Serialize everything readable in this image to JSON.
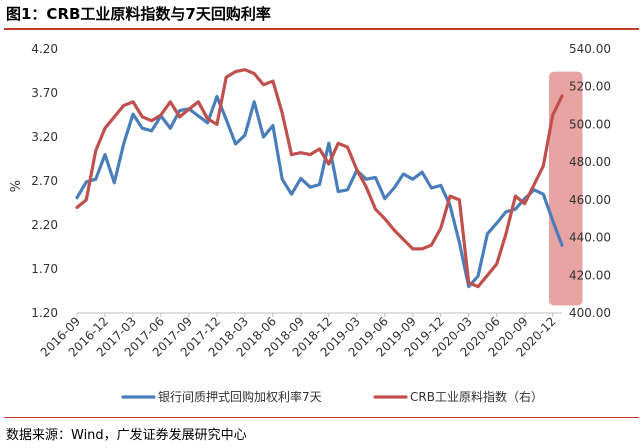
{
  "figure": {
    "title": "图1：CRB工业原料指数与7天回购利率",
    "source": "数据来源：Wind，广发证券发展研究中心"
  },
  "chart_data": {
    "type": "line",
    "title": "图1：CRB工业原料指数与7天回购利率",
    "ylabel": "%",
    "y_unit_label": "%",
    "ylim": [
      1.2,
      4.2
    ],
    "yticks": [
      "4.20",
      "3.70",
      "3.20",
      "2.70",
      "2.20",
      "1.70",
      "1.20"
    ],
    "y2lim": [
      400,
      540
    ],
    "y2ticks": [
      "540.00",
      "520.00",
      "500.00",
      "480.00",
      "460.00",
      "440.00",
      "420.00",
      "400.00"
    ],
    "xlim": [
      0,
      52
    ],
    "x_tick_labels": [
      "2016-09",
      "2016-12",
      "2017-03",
      "2017-06",
      "2017-09",
      "2017-12",
      "2018-03",
      "2018-06",
      "2018-09",
      "2018-12",
      "2019-03",
      "2019-06",
      "2019-09",
      "2019-12",
      "2020-03",
      "2020-06",
      "2020-09",
      "2020-12"
    ],
    "x_tick_positions": [
      0,
      3,
      6,
      9,
      12,
      15,
      18,
      21,
      24,
      27,
      30,
      33,
      36,
      39,
      42,
      45,
      48,
      51
    ],
    "series": [
      {
        "name": "银行间质押式回购加权利率7天",
        "axis": "left",
        "color": "#4a7ebb",
        "x": [
          0,
          1,
          2,
          3,
          4,
          5,
          6,
          7,
          8,
          9,
          10,
          11,
          12,
          13,
          14,
          15,
          16,
          17,
          18,
          19,
          20,
          21,
          22,
          23,
          24,
          25,
          26,
          27,
          28,
          29,
          30,
          31,
          32,
          33,
          34,
          35,
          36,
          37,
          38,
          39,
          40,
          41,
          42,
          43,
          44,
          45,
          46,
          47,
          48,
          49,
          50,
          51,
          52
        ],
        "values": [
          2.51,
          2.69,
          2.72,
          3.0,
          2.68,
          3.12,
          3.46,
          3.3,
          3.27,
          3.44,
          3.3,
          3.5,
          3.52,
          3.44,
          3.36,
          3.66,
          3.4,
          3.12,
          3.22,
          3.6,
          3.2,
          3.33,
          2.72,
          2.55,
          2.73,
          2.63,
          2.66,
          3.13,
          2.58,
          2.6,
          2.82,
          2.72,
          2.74,
          2.5,
          2.62,
          2.78,
          2.72,
          2.8,
          2.62,
          2.65,
          2.42,
          2.0,
          1.5,
          1.62,
          2.1,
          2.22,
          2.35,
          2.38,
          2.5,
          2.6,
          2.55,
          2.25,
          1.97
        ]
      },
      {
        "name": "CRB工业原料指数（右）",
        "axis": "right",
        "color": "#c0504d",
        "x": [
          0,
          1,
          2,
          3,
          4,
          5,
          6,
          7,
          8,
          9,
          10,
          11,
          12,
          13,
          14,
          15,
          16,
          17,
          18,
          19,
          20,
          21,
          22,
          23,
          24,
          25,
          26,
          27,
          28,
          29,
          30,
          31,
          32,
          33,
          34,
          35,
          36,
          37,
          38,
          39,
          40,
          41,
          42,
          43,
          44,
          45,
          46,
          47,
          48,
          49,
          50,
          51,
          52
        ],
        "values": [
          456,
          460,
          486,
          498,
          504,
          510,
          512,
          504,
          502,
          505,
          512,
          504,
          508,
          512,
          503,
          500,
          525,
          528,
          529,
          527,
          521,
          523,
          506,
          484,
          485,
          484,
          487,
          479,
          490,
          488,
          476,
          467,
          455,
          450,
          444,
          439,
          434,
          434,
          436,
          445,
          462,
          460,
          416,
          414,
          420,
          426,
          442,
          462,
          458,
          468,
          478,
          505,
          515
        ]
      }
    ],
    "legend": {
      "position": "bottom"
    },
    "highlight": {
      "from_x": 50.6,
      "to_x": 54.2,
      "y2_from": 404,
      "y2_to": 528,
      "color": "#e8a3a3"
    }
  }
}
